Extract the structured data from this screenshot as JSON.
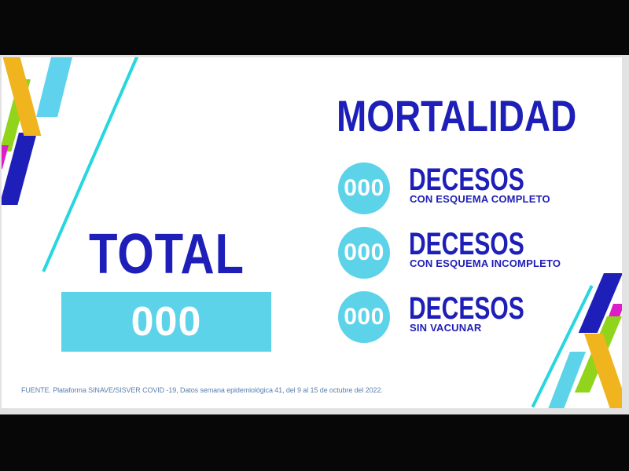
{
  "slide": {
    "title": "MORTALIDAD",
    "total": {
      "label": "TOTAL",
      "value": "000"
    },
    "mortality_rows": [
      {
        "value": "000",
        "label": "DECESOS",
        "sublabel": "CON ESQUEMA COMPLETO"
      },
      {
        "value": "000",
        "label": "DECESOS",
        "sublabel": "CON ESQUEMA INCOMPLETO"
      },
      {
        "value": "000",
        "label": "DECESOS",
        "sublabel": "SIN VACUNAR"
      }
    ],
    "footer": "FUENTE. Plataforma SINAVE/SISVER COVID -19, Datos semana epidemiológica 41, del 9 al 15 de octubre del 2022."
  },
  "colors": {
    "blue": "#1e1eb8",
    "cyan": "#5cd3e8",
    "cyan-line": "#27d6de",
    "sky": "#5fd2ee",
    "yellow": "#f0b41e",
    "green": "#90d41c",
    "magenta": "#dc1ec8",
    "footer-text": "#5b7fae"
  }
}
